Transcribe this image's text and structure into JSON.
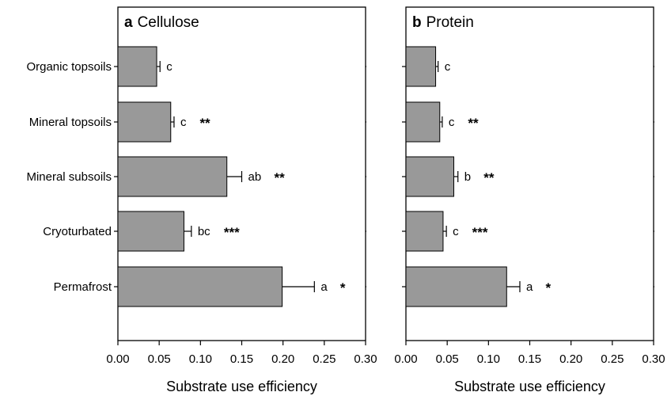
{
  "chart_data": {
    "type": "bar",
    "orientation": "horizontal",
    "categories": [
      "Organic topsoils",
      "Mineral topsoils",
      "Mineral subsoils",
      "Cryoturbated",
      "Permafrost"
    ],
    "bar_color": "#999999",
    "xlim": [
      0,
      0.3
    ],
    "xticks": [
      "0.00",
      "0.05",
      "0.10",
      "0.15",
      "0.20",
      "0.25",
      "0.30"
    ],
    "panels": [
      {
        "letter": "a",
        "title": "Cellulose",
        "xlabel": "Substrate use efficiency",
        "values": [
          0.047,
          0.064,
          0.132,
          0.08,
          0.199
        ],
        "errors": [
          0.004,
          0.004,
          0.018,
          0.009,
          0.039
        ],
        "letters": [
          "c",
          "c",
          "ab",
          "bc",
          "a"
        ],
        "stars": [
          "",
          "**",
          "**",
          "***",
          "*"
        ]
      },
      {
        "letter": "b",
        "title": "Protein",
        "xlabel": "Substrate use efficiency",
        "values": [
          0.036,
          0.041,
          0.058,
          0.045,
          0.122
        ],
        "errors": [
          0.003,
          0.003,
          0.005,
          0.004,
          0.016
        ],
        "letters": [
          "c",
          "c",
          "b",
          "c",
          "a"
        ],
        "stars": [
          "",
          "**",
          "**",
          "***",
          "*"
        ]
      }
    ]
  }
}
